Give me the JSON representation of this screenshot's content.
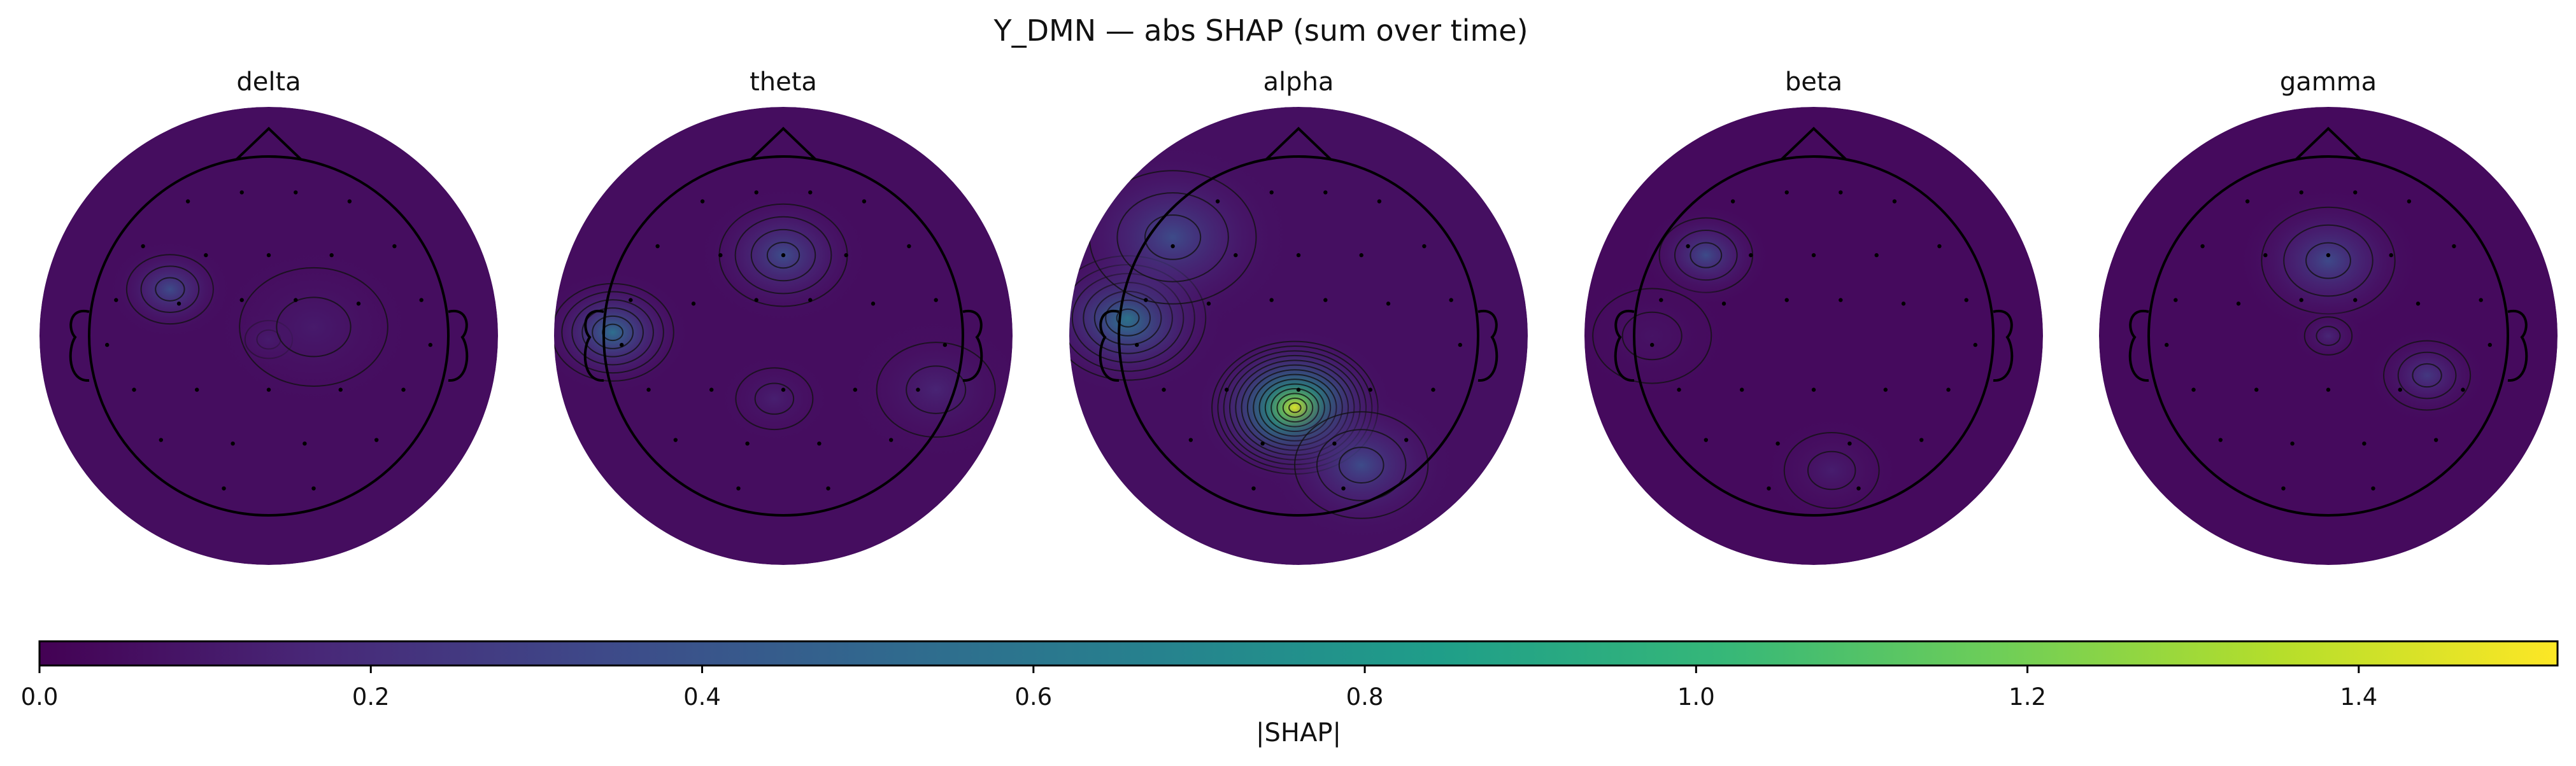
{
  "chart_data": {
    "type": "heatmap",
    "title": "Y_DMN — abs SHAP (sum over time)",
    "colorbar": {
      "label": "|SHAP|",
      "min": 0.0,
      "max": 1.52,
      "ticks": [
        "0.0",
        "0.2",
        "0.4",
        "0.6",
        "0.8",
        "1.0",
        "1.2",
        "1.4"
      ],
      "tick_values": [
        0.0,
        0.2,
        0.4,
        0.6,
        0.8,
        1.0,
        1.2,
        1.4
      ],
      "colormap": "viridis",
      "stops": [
        "#440154",
        "#482878",
        "#3e4989",
        "#31688e",
        "#26828e",
        "#1f9e89",
        "#35b779",
        "#6ece58",
        "#b5de2b",
        "#fde725"
      ]
    },
    "series": [
      {
        "name": "delta",
        "background": 0.05,
        "hotspots": [
          {
            "x": -0.55,
            "y": 0.26,
            "value": 0.35,
            "spread": 0.13
          },
          {
            "x": 0.0,
            "y": -0.02,
            "value": 0.17,
            "spread": 0.08
          },
          {
            "x": 0.25,
            "y": 0.05,
            "value": 0.11,
            "spread": 0.25
          }
        ]
      },
      {
        "name": "theta",
        "background": 0.05,
        "hotspots": [
          {
            "x": -0.95,
            "y": 0.02,
            "value": 0.55,
            "spread": 0.16
          },
          {
            "x": 0.0,
            "y": 0.45,
            "value": 0.36,
            "spread": 0.18
          },
          {
            "x": -0.05,
            "y": -0.35,
            "value": 0.13,
            "spread": 0.13
          },
          {
            "x": 0.85,
            "y": -0.3,
            "value": 0.15,
            "spread": 0.2
          }
        ]
      },
      {
        "name": "alpha",
        "background": 0.06,
        "hotspots": [
          {
            "x": -0.02,
            "y": -0.4,
            "value": 1.45,
            "spread": 0.2
          },
          {
            "x": -0.95,
            "y": 0.1,
            "value": 0.65,
            "spread": 0.2
          },
          {
            "x": -0.7,
            "y": 0.55,
            "value": 0.35,
            "spread": 0.25
          },
          {
            "x": 0.35,
            "y": -0.72,
            "value": 0.35,
            "spread": 0.2
          }
        ]
      },
      {
        "name": "beta",
        "background": 0.04,
        "hotspots": [
          {
            "x": -0.6,
            "y": 0.45,
            "value": 0.35,
            "spread": 0.14
          },
          {
            "x": 0.1,
            "y": -0.75,
            "value": 0.12,
            "spread": 0.16
          },
          {
            "x": -0.9,
            "y": 0.0,
            "value": 0.08,
            "spread": 0.2
          }
        ]
      },
      {
        "name": "gamma",
        "background": 0.04,
        "hotspots": [
          {
            "x": 0.0,
            "y": 0.42,
            "value": 0.34,
            "spread": 0.2
          },
          {
            "x": 0.55,
            "y": -0.22,
            "value": 0.25,
            "spread": 0.13
          },
          {
            "x": 0.0,
            "y": 0.0,
            "value": 0.16,
            "spread": 0.08
          }
        ]
      }
    ],
    "sensors": [
      [
        -0.45,
        0.75
      ],
      [
        -0.15,
        0.8
      ],
      [
        0.15,
        0.8
      ],
      [
        0.45,
        0.75
      ],
      [
        -0.7,
        0.5
      ],
      [
        -0.35,
        0.45
      ],
      [
        0.0,
        0.45
      ],
      [
        0.35,
        0.45
      ],
      [
        0.7,
        0.5
      ],
      [
        -0.85,
        0.2
      ],
      [
        -0.5,
        0.18
      ],
      [
        -0.15,
        0.2
      ],
      [
        0.15,
        0.2
      ],
      [
        0.5,
        0.18
      ],
      [
        0.85,
        0.2
      ],
      [
        -0.9,
        -0.05
      ],
      [
        0.9,
        -0.05
      ],
      [
        -0.75,
        -0.3
      ],
      [
        -0.4,
        -0.3
      ],
      [
        0.0,
        -0.3
      ],
      [
        0.4,
        -0.3
      ],
      [
        0.75,
        -0.3
      ],
      [
        -0.6,
        -0.58
      ],
      [
        -0.2,
        -0.6
      ],
      [
        0.2,
        -0.6
      ],
      [
        0.6,
        -0.58
      ],
      [
        -0.25,
        -0.85
      ],
      [
        0.25,
        -0.85
      ]
    ]
  }
}
